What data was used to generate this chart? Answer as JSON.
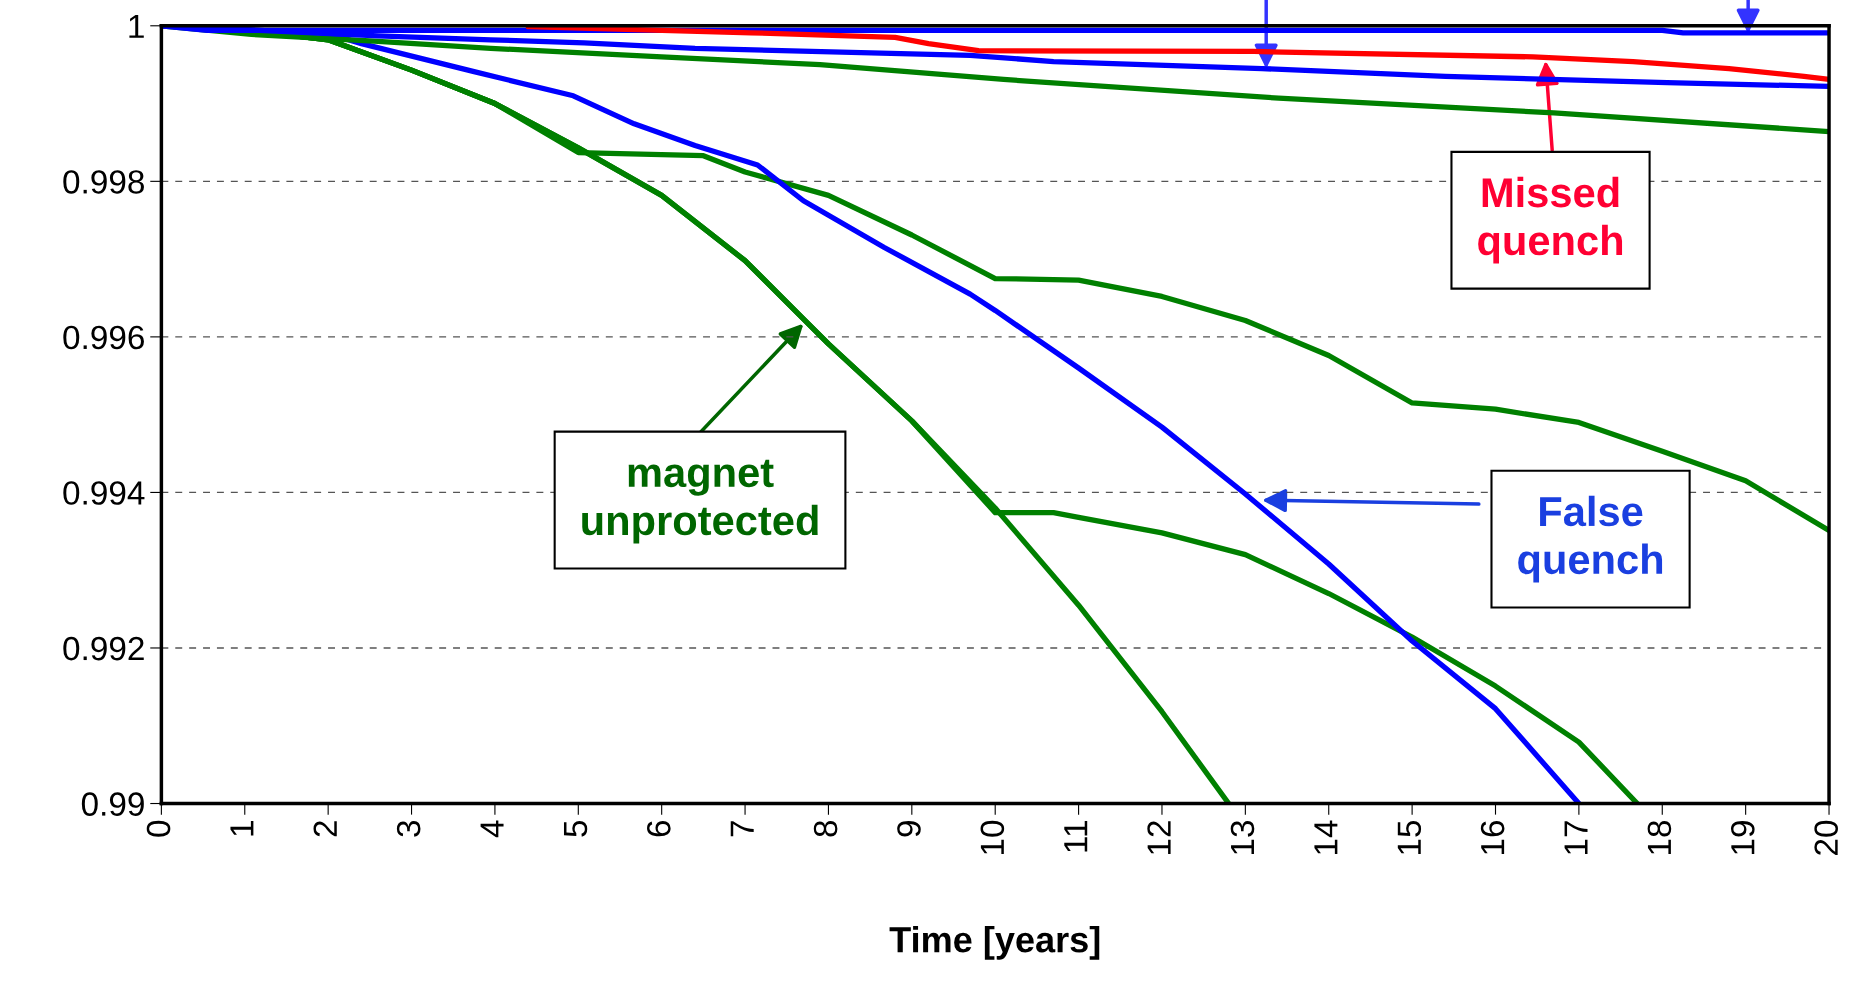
{
  "chart_data": {
    "type": "line",
    "xlabel": "Time [years]",
    "xlim": [
      0,
      20
    ],
    "ylim": [
      0.99,
      1
    ],
    "xticks": [
      0,
      1,
      2,
      3,
      4,
      5,
      6,
      7,
      8,
      9,
      10,
      11,
      12,
      13,
      14,
      15,
      16,
      17,
      18,
      19,
      20
    ],
    "yticks": [
      0.99,
      0.992,
      0.994,
      0.996,
      0.998,
      1
    ],
    "grid": "y",
    "legend": false,
    "marker": "none",
    "line_style": "solid",
    "series": [
      {
        "color": "#008000",
        "x": [
          0,
          1,
          2,
          3,
          4,
          5,
          6,
          7,
          7.7,
          8,
          9,
          10,
          11,
          12,
          12.8
        ],
        "values": [
          1,
          0.99995,
          0.99982,
          0.99943,
          0.999,
          0.99843,
          0.99782,
          0.99698,
          0.99623,
          0.99591,
          0.99492,
          0.9938,
          0.99255,
          0.99118,
          0.99
        ]
      },
      {
        "color": "#008000",
        "x": [
          0,
          1,
          2,
          3,
          4,
          5,
          6,
          7,
          8,
          9,
          10,
          10.7,
          11,
          12,
          13,
          14,
          15,
          16,
          17,
          17.7
        ],
        "values": [
          1,
          0.99995,
          0.99982,
          0.99943,
          0.999,
          0.99843,
          0.99782,
          0.99698,
          0.99591,
          0.99492,
          0.99374,
          0.99374,
          0.99368,
          0.99348,
          0.9932,
          0.9927,
          0.99214,
          0.99151,
          0.99079,
          0.99
        ]
      },
      {
        "color": "#008000",
        "x": [
          0,
          1,
          2,
          3,
          4,
          5,
          6.5,
          7,
          8,
          9,
          10,
          11,
          12,
          13,
          14,
          15,
          16,
          17,
          18,
          19,
          20
        ],
        "values": [
          1,
          0.99995,
          0.99982,
          0.99943,
          0.999,
          0.99837,
          0.99833,
          0.99812,
          0.99782,
          0.99731,
          0.99675,
          0.99673,
          0.99652,
          0.99621,
          0.99576,
          0.99515,
          0.99507,
          0.9949,
          0.99453,
          0.99415,
          0.99351
        ]
      },
      {
        "color": "#0000ff",
        "x": [
          0,
          1,
          2,
          2.4,
          3.75,
          4.94,
          5.67,
          6.4,
          7.15,
          7.7,
          8.67,
          9.7,
          10,
          11,
          12,
          13,
          14,
          15,
          16,
          17
        ],
        "values": [
          1,
          0.99995,
          0.9999,
          0.99977,
          0.99941,
          0.9991,
          0.99874,
          0.99846,
          0.99821,
          0.99775,
          0.99715,
          0.99655,
          0.99634,
          0.9956,
          0.99484,
          0.99398,
          0.99308,
          0.99209,
          0.99122,
          0.99
        ]
      },
      {
        "color": "#008000",
        "x": [
          0,
          1.08,
          2.6,
          3.95,
          6,
          7.9,
          10.1,
          13.4,
          16.7,
          20
        ],
        "values": [
          1,
          0.99989,
          0.9998,
          0.99971,
          0.9996,
          0.9995,
          0.99931,
          0.99907,
          0.99888,
          0.99864
        ]
      },
      {
        "color": "#0000ff",
        "x": [
          0,
          1,
          2.6,
          3.95,
          5.07,
          6.4,
          9.7,
          10.7,
          13.2,
          15.4,
          18.06,
          20
        ],
        "values": [
          1,
          0.99995,
          0.99987,
          0.99982,
          0.99978,
          0.99971,
          0.99962,
          0.99954,
          0.99945,
          0.99935,
          0.99927,
          0.99922
        ]
      },
      {
        "color": "#0000ff",
        "x": [
          0,
          0.55,
          18,
          18.25,
          20
        ],
        "values": [
          1,
          0.99994,
          0.99994,
          0.99991,
          0.99991
        ]
      },
      {
        "color": "#ff0000",
        "x": [
          4.4,
          7.07,
          8.8,
          9.2,
          9.8,
          13.1,
          16.45,
          17.65,
          18.8,
          19.7,
          20
        ],
        "values": [
          0.99999,
          0.99991,
          0.99985,
          0.99977,
          0.99968,
          0.99967,
          0.9996,
          0.99954,
          0.99945,
          0.99935,
          0.99931
        ]
      }
    ],
    "annotations": [
      "Missed\nquench",
      "False\nquench",
      "magnet\nunprotected"
    ]
  }
}
